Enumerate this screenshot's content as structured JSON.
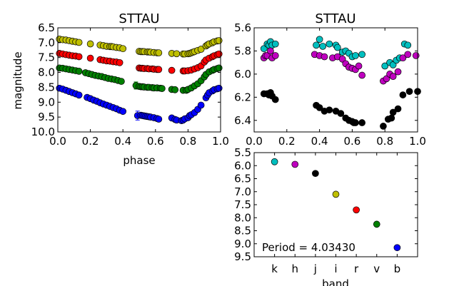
{
  "colors": {
    "k": "#00bfbf",
    "h": "#bf00bf",
    "j": "#000000",
    "i": "#bfbf00",
    "r": "#ff0000",
    "v": "#008000",
    "b": "#0000ff",
    "frame": "#000000",
    "background": "#ffffff"
  },
  "chart_data": [
    {
      "type": "scatter",
      "title": "STTAU",
      "xlabel": "phase",
      "ylabel": "magnitude",
      "xlim": [
        0.0,
        1.0
      ],
      "ylim": [
        10.0,
        6.5
      ],
      "y_inverted": true,
      "xticks": [
        "0.0",
        "0.2",
        "0.4",
        "0.6",
        "0.8",
        "1.0"
      ],
      "yticks": [
        "6.5",
        "7.0",
        "7.5",
        "8.0",
        "8.5",
        "9.0",
        "9.5",
        "10.0"
      ],
      "grid": false,
      "series": [
        {
          "color_key": "i",
          "x": [
            0.01,
            0.03,
            0.05,
            0.07,
            0.09,
            0.11,
            0.13,
            0.2,
            0.26,
            0.28,
            0.3,
            0.32,
            0.33,
            0.34,
            0.36,
            0.38,
            0.4,
            0.5,
            0.51,
            0.52,
            0.53,
            0.55,
            0.56,
            0.57,
            0.59,
            0.61,
            0.62,
            0.7,
            0.73,
            0.77,
            0.78,
            0.8,
            0.81,
            0.82,
            0.83,
            0.84,
            0.86,
            0.88,
            0.91,
            0.92,
            0.93,
            0.95,
            0.96,
            0.98,
            0.99
          ],
          "y": [
            6.88,
            6.9,
            6.91,
            6.93,
            6.95,
            6.97,
            6.99,
            7.04,
            7.08,
            7.1,
            7.12,
            7.13,
            7.13,
            7.14,
            7.16,
            7.17,
            7.2,
            7.29,
            7.3,
            7.3,
            7.3,
            7.31,
            7.31,
            7.32,
            7.33,
            7.34,
            7.34,
            7.36,
            7.37,
            7.38,
            7.38,
            7.37,
            7.36,
            7.34,
            7.32,
            7.3,
            7.26,
            7.22,
            7.11,
            7.07,
            7.04,
            7.0,
            6.97,
            6.94,
            6.93
          ]
        },
        {
          "color_key": "r",
          "x": [
            0.01,
            0.03,
            0.05,
            0.07,
            0.09,
            0.11,
            0.13,
            0.2,
            0.26,
            0.28,
            0.3,
            0.32,
            0.34,
            0.36,
            0.38,
            0.5,
            0.51,
            0.52,
            0.53,
            0.55,
            0.56,
            0.58,
            0.59,
            0.61,
            0.62,
            0.7,
            0.77,
            0.78,
            0.8,
            0.82,
            0.84,
            0.86,
            0.88,
            0.9,
            0.91,
            0.93,
            0.95,
            0.96,
            0.98,
            0.99
          ],
          "y": [
            7.36,
            7.38,
            7.4,
            7.42,
            7.44,
            7.45,
            7.47,
            7.52,
            7.57,
            7.59,
            7.61,
            7.62,
            7.64,
            7.65,
            7.67,
            7.85,
            7.86,
            7.86,
            7.87,
            7.87,
            7.88,
            7.88,
            7.89,
            7.9,
            7.9,
            7.93,
            7.95,
            7.95,
            7.94,
            7.92,
            7.88,
            7.84,
            7.78,
            7.65,
            7.58,
            7.52,
            7.47,
            7.44,
            7.4,
            7.38
          ]
        },
        {
          "color_key": "v",
          "x": [
            0.01,
            0.03,
            0.05,
            0.07,
            0.09,
            0.11,
            0.13,
            0.17,
            0.19,
            0.21,
            0.23,
            0.25,
            0.27,
            0.29,
            0.31,
            0.33,
            0.35,
            0.37,
            0.39,
            0.5,
            0.51,
            0.52,
            0.53,
            0.55,
            0.56,
            0.58,
            0.59,
            0.61,
            0.63,
            0.64,
            0.7,
            0.72,
            0.77,
            0.79,
            0.8,
            0.82,
            0.84,
            0.86,
            0.88,
            0.9,
            0.91,
            0.93,
            0.95,
            0.96,
            0.98,
            0.99
          ],
          "y": [
            7.85,
            7.86,
            7.88,
            7.9,
            7.92,
            7.94,
            7.96,
            8.01,
            8.04,
            8.07,
            8.1,
            8.12,
            8.14,
            8.17,
            8.2,
            8.22,
            8.24,
            8.27,
            8.3,
            8.47,
            8.48,
            8.48,
            8.49,
            8.5,
            8.5,
            8.51,
            8.52,
            8.52,
            8.53,
            8.54,
            8.57,
            8.58,
            8.6,
            8.6,
            8.57,
            8.52,
            8.45,
            8.38,
            8.28,
            8.15,
            8.07,
            7.98,
            7.93,
            7.9,
            7.87,
            7.85
          ],
          "error_point": {
            "x": 0.48,
            "y": 8.44,
            "err": 0.12
          }
        },
        {
          "color_key": "b",
          "x": [
            0.01,
            0.03,
            0.05,
            0.07,
            0.09,
            0.11,
            0.13,
            0.18,
            0.2,
            0.22,
            0.24,
            0.26,
            0.28,
            0.3,
            0.32,
            0.34,
            0.36,
            0.38,
            0.4,
            0.51,
            0.52,
            0.53,
            0.54,
            0.55,
            0.56,
            0.57,
            0.59,
            0.61,
            0.62,
            0.7,
            0.72,
            0.73,
            0.76,
            0.77,
            0.78,
            0.8,
            0.81,
            0.82,
            0.84,
            0.86,
            0.88,
            0.91,
            0.92,
            0.93,
            0.95,
            0.96,
            0.98,
            0.99
          ],
          "y": [
            8.53,
            8.56,
            8.6,
            8.64,
            8.68,
            8.72,
            8.76,
            8.84,
            8.88,
            8.93,
            8.97,
            9.02,
            9.06,
            9.1,
            9.14,
            9.18,
            9.22,
            9.27,
            9.31,
            9.44,
            9.45,
            9.46,
            9.47,
            9.48,
            9.49,
            9.5,
            9.52,
            9.55,
            9.57,
            9.53,
            9.58,
            9.6,
            9.62,
            9.6,
            9.56,
            9.52,
            9.45,
            9.42,
            9.35,
            9.24,
            9.1,
            8.85,
            8.76,
            8.68,
            8.62,
            8.58,
            8.55,
            8.53
          ],
          "error_point": {
            "x": 0.49,
            "y": 9.45,
            "err": 0.15
          }
        }
      ]
    },
    {
      "type": "scatter",
      "title": "STTAU",
      "xlabel": "",
      "ylabel": "",
      "xlim": [
        0.0,
        1.0
      ],
      "ylim": [
        6.5,
        5.6
      ],
      "y_inverted": true,
      "xticks": [
        "0.0",
        "0.2",
        "0.4",
        "0.6",
        "0.8",
        "1.0"
      ],
      "yticks": [
        "5.6",
        "5.8",
        "6.0",
        "6.2",
        "6.4"
      ],
      "grid": false,
      "series": [
        {
          "color_key": "k",
          "x": [
            0.06,
            0.08,
            0.09,
            0.1,
            0.11,
            0.13,
            0.38,
            0.4,
            0.42,
            0.46,
            0.5,
            0.51,
            0.54,
            0.56,
            0.58,
            0.6,
            0.62,
            0.66,
            0.8,
            0.83,
            0.85,
            0.87,
            0.89,
            0.92,
            0.94
          ],
          "y": [
            5.78,
            5.74,
            5.75,
            5.72,
            5.75,
            5.74,
            5.75,
            5.7,
            5.76,
            5.74,
            5.75,
            5.77,
            5.81,
            5.8,
            5.82,
            5.85,
            5.84,
            5.83,
            5.93,
            5.9,
            5.92,
            5.88,
            5.86,
            5.74,
            5.75
          ]
        },
        {
          "color_key": "h",
          "x": [
            0.06,
            0.07,
            0.08,
            0.1,
            0.11,
            0.13,
            0.37,
            0.4,
            0.43,
            0.48,
            0.51,
            0.54,
            0.56,
            0.58,
            0.6,
            0.62,
            0.64,
            0.66,
            0.79,
            0.81,
            0.83,
            0.85,
            0.88,
            0.91,
            0.94,
            0.99
          ],
          "y": [
            5.86,
            5.84,
            5.84,
            5.8,
            5.86,
            5.84,
            5.83,
            5.84,
            5.85,
            5.86,
            5.85,
            5.87,
            5.91,
            5.94,
            5.95,
            5.96,
            5.93,
            6.01,
            6.06,
            6.04,
            6.0,
            6.02,
            5.98,
            5.86,
            5.83,
            5.84
          ]
        },
        {
          "color_key": "j",
          "x": [
            0.06,
            0.08,
            0.09,
            0.1,
            0.11,
            0.13,
            0.38,
            0.4,
            0.43,
            0.46,
            0.5,
            0.53,
            0.56,
            0.58,
            0.6,
            0.61,
            0.62,
            0.66,
            0.79,
            0.82,
            0.84,
            0.85,
            0.88,
            0.91,
            0.95,
            1.0
          ],
          "y": [
            6.17,
            6.17,
            6.18,
            6.16,
            6.19,
            6.22,
            6.27,
            6.29,
            6.32,
            6.31,
            6.32,
            6.34,
            6.38,
            6.4,
            6.41,
            6.42,
            6.42,
            6.42,
            6.45,
            6.39,
            6.38,
            6.33,
            6.3,
            6.18,
            6.15,
            6.15
          ]
        }
      ]
    },
    {
      "type": "scatter",
      "title": "",
      "xlabel": "band",
      "ylabel": "",
      "categories": [
        "k",
        "h",
        "j",
        "i",
        "r",
        "v",
        "b"
      ],
      "values": [
        5.85,
        5.95,
        6.3,
        7.1,
        7.7,
        8.25,
        9.15
      ],
      "ylim": [
        9.5,
        5.5
      ],
      "y_inverted": true,
      "yticks": [
        "5.5",
        "6.0",
        "6.5",
        "7.0",
        "7.5",
        "8.0",
        "8.5",
        "9.0",
        "9.5"
      ],
      "annotation": "Period = 4.03430",
      "grid": false
    }
  ]
}
